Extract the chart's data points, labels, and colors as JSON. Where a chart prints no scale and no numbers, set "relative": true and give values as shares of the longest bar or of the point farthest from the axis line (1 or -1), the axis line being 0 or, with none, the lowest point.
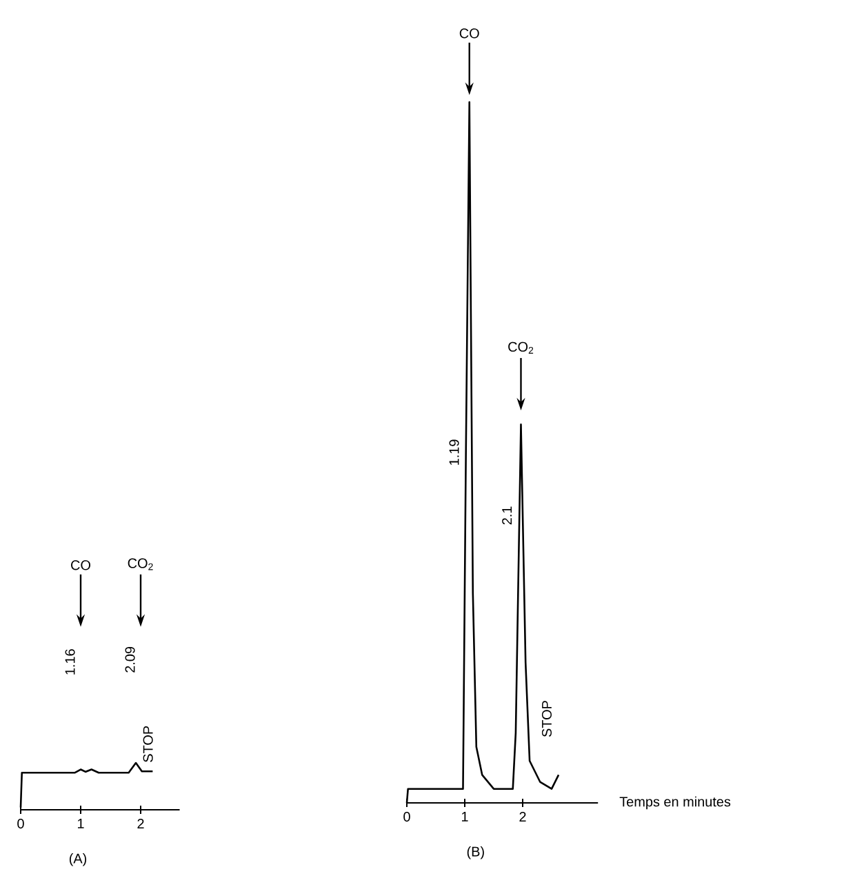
{
  "chart_data": [
    {
      "type": "line",
      "title": "(A)",
      "relative": true,
      "xlim": [
        0,
        2.65
      ],
      "xticks": [
        0,
        1,
        2
      ],
      "color": "#000000",
      "x": [
        0,
        0.02,
        0.9,
        1.0,
        1.08,
        1.18,
        1.3,
        1.8,
        1.92,
        2.02,
        2.2
      ],
      "values": [
        0.05,
        0.79,
        0.79,
        0.86,
        0.81,
        0.86,
        0.79,
        0.79,
        1.0,
        0.82,
        0.82
      ],
      "annotations": [
        "CO",
        "CO$_{2}$",
        "1.16",
        "2.09",
        "STOP"
      ]
    },
    {
      "type": "line",
      "title": "(B)",
      "xlabel": "Temps en minutes",
      "relative": true,
      "xlim": [
        0,
        3.3
      ],
      "xticks": [
        0,
        1,
        2
      ],
      "color": "#000000",
      "x": [
        0,
        0.02,
        0.97,
        1.02,
        1.08,
        1.14,
        1.2,
        1.3,
        1.5,
        1.83,
        1.88,
        1.97,
        2.05,
        2.12,
        2.3,
        2.5,
        2.62
      ],
      "values": [
        0,
        0.02,
        0.02,
        0.5,
        1.0,
        0.3,
        0.08,
        0.04,
        0.02,
        0.02,
        0.1,
        0.54,
        0.2,
        0.06,
        0.03,
        0.02,
        0.04
      ],
      "annotations": [
        "CO",
        "CO$_{2}$",
        "1.19",
        "2.1",
        "STOP"
      ]
    }
  ]
}
